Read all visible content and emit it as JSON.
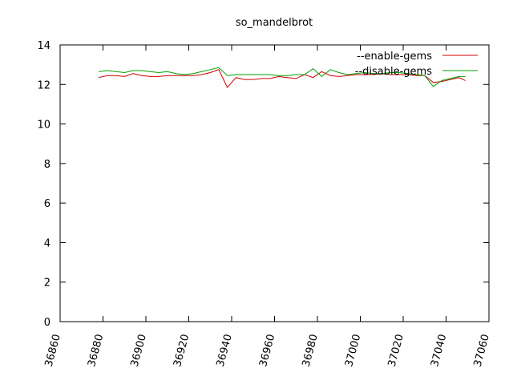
{
  "chart_data": {
    "type": "line",
    "title": "so_mandelbrot",
    "xlabel": "",
    "ylabel": "",
    "xlim": [
      36860,
      37060
    ],
    "ylim": [
      0,
      14
    ],
    "x_ticks": [
      36860,
      36880,
      36900,
      36920,
      36940,
      36960,
      36980,
      37000,
      37020,
      37040,
      37060
    ],
    "y_ticks": [
      0,
      2,
      4,
      6,
      8,
      10,
      12,
      14
    ],
    "grid": false,
    "legend_position": "top-right",
    "series": [
      {
        "name": "--enable-gems",
        "color": "#d00000",
        "x": [
          36878,
          36882,
          36886,
          36890,
          36894,
          36898,
          36902,
          36906,
          36910,
          36914,
          36918,
          36922,
          36926,
          36930,
          36934,
          36938,
          36942,
          36946,
          36950,
          36954,
          36958,
          36962,
          36966,
          36970,
          36974,
          36978,
          36982,
          36986,
          36990,
          36994,
          36998,
          37002,
          37006,
          37010,
          37014,
          37018,
          37022,
          37026,
          37030,
          37034,
          37038,
          37042,
          37046,
          37049
        ],
        "values": [
          12.35,
          12.45,
          12.45,
          12.4,
          12.55,
          12.45,
          12.4,
          12.4,
          12.45,
          12.45,
          12.45,
          12.45,
          12.5,
          12.6,
          12.75,
          11.85,
          12.35,
          12.25,
          12.25,
          12.3,
          12.3,
          12.4,
          12.35,
          12.3,
          12.5,
          12.35,
          12.65,
          12.45,
          12.4,
          12.45,
          12.5,
          12.5,
          12.5,
          12.55,
          12.5,
          12.5,
          12.5,
          12.45,
          12.45,
          12.1,
          12.15,
          12.25,
          12.35,
          12.2
        ]
      },
      {
        "name": "--disable-gems",
        "color": "#00a000",
        "x": [
          36878,
          36882,
          36886,
          36890,
          36894,
          36898,
          36902,
          36906,
          36910,
          36914,
          36918,
          36922,
          36926,
          36930,
          36934,
          36938,
          36942,
          36946,
          36950,
          36954,
          36958,
          36962,
          36966,
          36970,
          36974,
          36978,
          36982,
          36986,
          36990,
          36994,
          36998,
          37002,
          37006,
          37010,
          37014,
          37018,
          37022,
          37026,
          37030,
          37034,
          37038,
          37042,
          37046,
          37049
        ],
        "values": [
          12.65,
          12.7,
          12.65,
          12.6,
          12.7,
          12.7,
          12.65,
          12.6,
          12.65,
          12.55,
          12.5,
          12.55,
          12.65,
          12.75,
          12.85,
          12.45,
          12.5,
          12.5,
          12.5,
          12.5,
          12.5,
          12.45,
          12.45,
          12.5,
          12.5,
          12.8,
          12.4,
          12.75,
          12.6,
          12.5,
          12.55,
          12.6,
          12.55,
          12.55,
          12.6,
          12.6,
          12.55,
          12.5,
          12.45,
          11.9,
          12.2,
          12.3,
          12.4,
          12.4
        ]
      }
    ]
  }
}
